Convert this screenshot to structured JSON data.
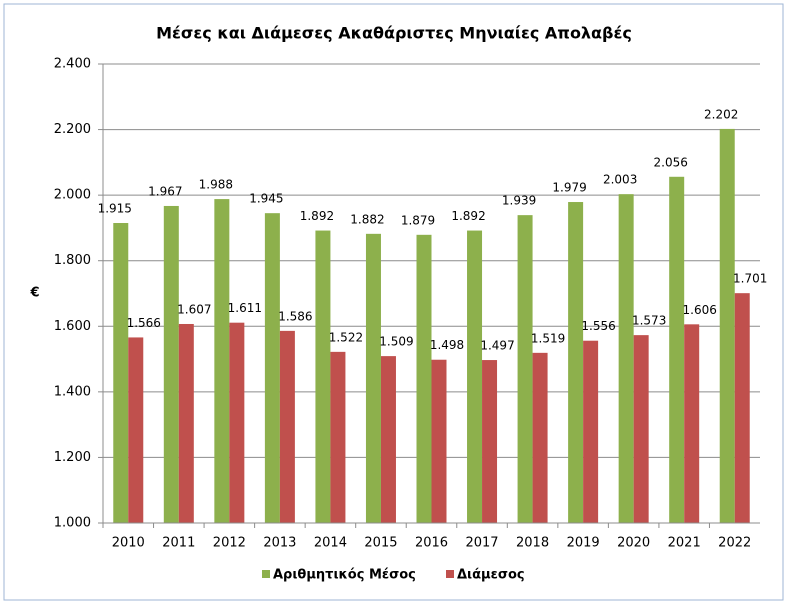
{
  "chart_data": {
    "type": "bar",
    "title": "Μέσες και Διάμεσες Ακαθάριστες Μηνιαίες Απολαβές",
    "y_label": "€",
    "categories": [
      "2010",
      "2011",
      "2012",
      "2013",
      "2014",
      "2015",
      "2016",
      "2017",
      "2018",
      "2019",
      "2020",
      "2021",
      "2022"
    ],
    "series": [
      {
        "name": "Αριθμητικός Μέσος",
        "color": "#8db04c",
        "values": [
          1915,
          1967,
          1988,
          1945,
          1892,
          1882,
          1879,
          1892,
          1939,
          1979,
          2003,
          2056,
          2202
        ],
        "value_labels": [
          "1.915",
          "1.967",
          "1.988",
          "1.945",
          "1.892",
          "1.882",
          "1.879",
          "1.892",
          "1.939",
          "1.979",
          "2.003",
          "2.056",
          "2.202"
        ]
      },
      {
        "name": "Διάμεσος",
        "color": "#c0504d",
        "values": [
          1566,
          1607,
          1611,
          1586,
          1522,
          1509,
          1498,
          1497,
          1519,
          1556,
          1573,
          1606,
          1701
        ],
        "value_labels": [
          "1.566",
          "1.607",
          "1.611",
          "1.586",
          "1.522",
          "1.509",
          "1.498",
          "1.497",
          "1.519",
          "1.556",
          "1.573",
          "1.606",
          "1.701"
        ]
      }
    ],
    "ylim": [
      1000,
      2400
    ],
    "yticks": [
      {
        "value": 1000,
        "label": "1.000"
      },
      {
        "value": 1200,
        "label": "1.200"
      },
      {
        "value": 1400,
        "label": "1.400"
      },
      {
        "value": 1600,
        "label": "1.600"
      },
      {
        "value": 1800,
        "label": "1.800"
      },
      {
        "value": 2000,
        "label": "2.000"
      },
      {
        "value": 2200,
        "label": "2.200"
      },
      {
        "value": 2400,
        "label": "2.400"
      }
    ],
    "grid": true,
    "legend": "bottom"
  }
}
